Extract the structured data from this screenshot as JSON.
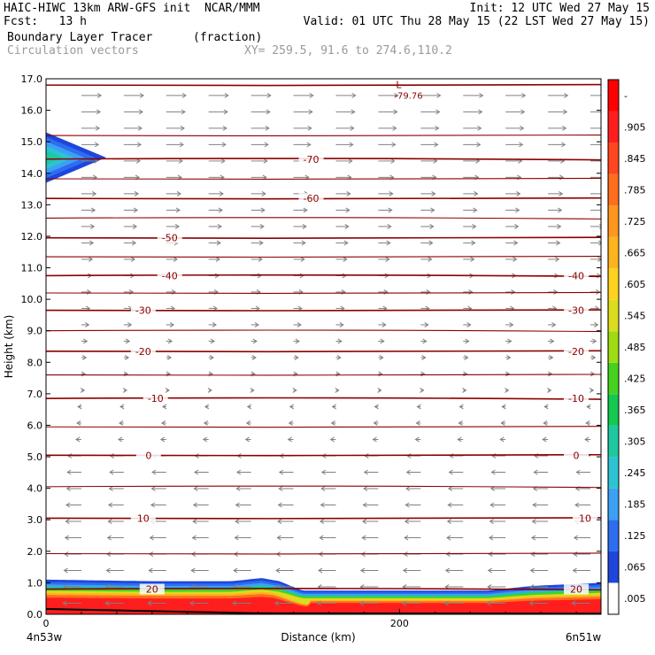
{
  "header": {
    "line1_left": "HAIC-HIWC 13km ARW-GFS init  NCAR/MMM",
    "line1_right": "Init: 12 UTC Wed 27 May 15",
    "line2_left": "Fcst:   13 h",
    "line2_right": "Valid: 01 UTC Thu 28 May 15 (22 LST Wed 27 May 15)",
    "field_name": "Boundary Layer Tracer",
    "field_units": "(fraction)",
    "vector_label": "Circulation vectors",
    "xy_label": "XY= 259.5, 91.6 to 274.6,110.2"
  },
  "chart_data": {
    "type": "heatmap",
    "title": "Boundary Layer Tracer",
    "units": "(fraction)",
    "xlabel": "Distance (km)",
    "ylabel": "Height (km)",
    "xlim": [
      0,
      314
    ],
    "ylim": [
      0,
      17
    ],
    "x_ticks": [
      0,
      200
    ],
    "x_end_labels": {
      "left": "4n53w",
      "right": "6n51w"
    },
    "y_ticks": [
      "0.0",
      "1.0",
      "2.0",
      "3.0",
      "4.0",
      "5.0",
      "6.0",
      "7.0",
      "8.0",
      "9.0",
      "10.0",
      "11.0",
      "12.0",
      "13.0",
      "14.0",
      "15.0",
      "16.0",
      "17.0"
    ],
    "colorbar": {
      "labels": [
        ".005",
        ".065",
        ".125",
        ".185",
        ".245",
        ".305",
        ".365",
        ".425",
        ".485",
        ".545",
        ".605",
        ".665",
        ".725",
        ".785",
        ".845",
        ".905",
        "-"
      ],
      "colors": [
        "#ffffff",
        "#1e46dc",
        "#2d6ef0",
        "#3ca0f5",
        "#2dc3d2",
        "#1ec8a0",
        "#14c850",
        "#46d21e",
        "#a0dc14",
        "#dcdc1e",
        "#ffd21e",
        "#ffb41e",
        "#ff961e",
        "#ff6e1e",
        "#ff461e",
        "#ff1e1e",
        "#ff0000"
      ]
    },
    "temperature_contours": [
      {
        "label": "20",
        "height": 0.8
      },
      {
        "label": "10",
        "height": 3.05
      },
      {
        "label": "0",
        "height": 5.05
      },
      {
        "label": "-10",
        "height": 6.85
      },
      {
        "label": "-20",
        "height": 8.35
      },
      {
        "label": "-30",
        "height": 9.65
      },
      {
        "label": "-40",
        "height": 10.75
      },
      {
        "label": "-50",
        "height": 11.95
      },
      {
        "label": "-60",
        "height": 13.2
      },
      {
        "label": "-70",
        "height": 14.45
      }
    ],
    "min_marker": {
      "symbol": "L",
      "label": "-79.76",
      "x": 198,
      "height": 16.7
    },
    "tracer_layer": [
      {
        "x": 0,
        "top": 1.1
      },
      {
        "x": 60,
        "top": 1.05
      },
      {
        "x": 105,
        "top": 1.05
      },
      {
        "x": 122,
        "top": 1.15
      },
      {
        "x": 132,
        "top": 1.05
      },
      {
        "x": 145,
        "top": 0.75
      },
      {
        "x": 200,
        "top": 0.75
      },
      {
        "x": 250,
        "top": 0.75
      },
      {
        "x": 275,
        "top": 0.9
      },
      {
        "x": 314,
        "top": 1.0
      }
    ],
    "upper_plume": {
      "height_min": 13.7,
      "height_max": 15.3,
      "x_max": 34
    }
  }
}
